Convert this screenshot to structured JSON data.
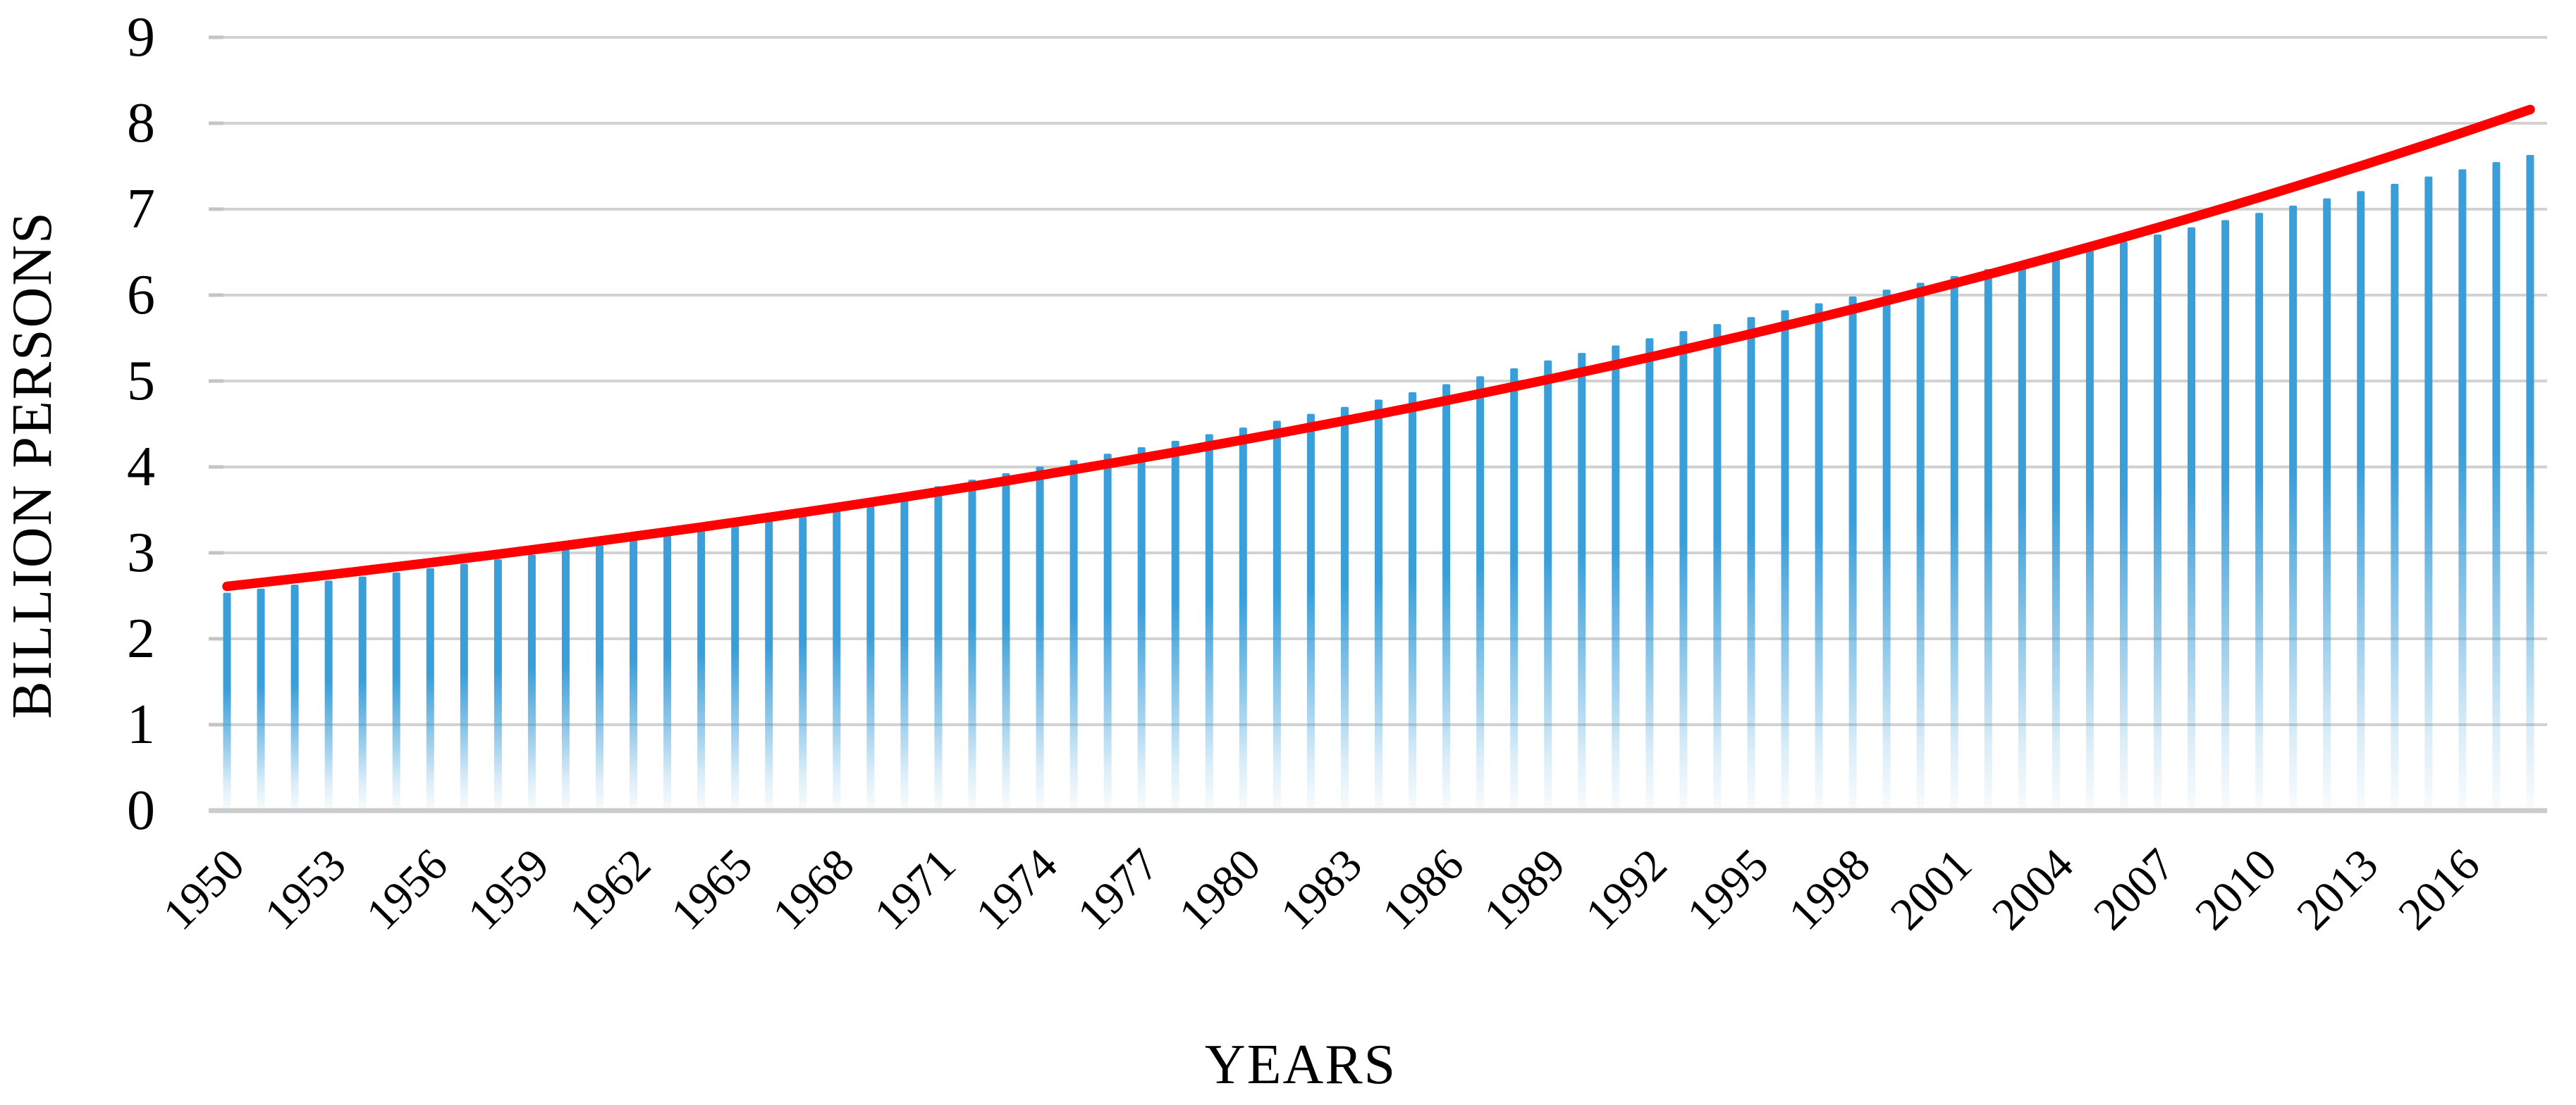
{
  "chart_data": {
    "type": "bar",
    "title": "",
    "xlabel": "YEARS",
    "ylabel": "BILLION PERSONS",
    "categories": [
      1950,
      1951,
      1952,
      1953,
      1954,
      1955,
      1956,
      1957,
      1958,
      1959,
      1960,
      1961,
      1962,
      1963,
      1964,
      1965,
      1966,
      1967,
      1968,
      1969,
      1970,
      1971,
      1972,
      1973,
      1974,
      1975,
      1976,
      1977,
      1978,
      1979,
      1980,
      1981,
      1982,
      1983,
      1984,
      1985,
      1986,
      1987,
      1988,
      1989,
      1990,
      1991,
      1992,
      1993,
      1994,
      1995,
      1996,
      1997,
      1998,
      1999,
      2000,
      2001,
      2002,
      2003,
      2004,
      2005,
      2006,
      2007,
      2008,
      2009,
      2010,
      2011,
      2012,
      2013,
      2014,
      2015,
      2016,
      2017,
      2018
    ],
    "series": [
      {
        "name": "world-population-bars",
        "type": "bar",
        "color": "#3a9ed9",
        "values": [
          2.536,
          2.584,
          2.63,
          2.677,
          2.724,
          2.773,
          2.822,
          2.873,
          2.925,
          2.979,
          3.035,
          3.092,
          3.15,
          3.211,
          3.273,
          3.339,
          3.408,
          3.48,
          3.553,
          3.625,
          3.7,
          3.776,
          3.851,
          3.927,
          4.004,
          4.079,
          4.154,
          4.229,
          4.304,
          4.381,
          4.458,
          4.537,
          4.618,
          4.699,
          4.784,
          4.87,
          4.963,
          5.055,
          5.148,
          5.24,
          5.327,
          5.414,
          5.498,
          5.581,
          5.663,
          5.744,
          5.824,
          5.905,
          5.984,
          6.064,
          6.143,
          6.222,
          6.302,
          6.381,
          6.461,
          6.542,
          6.623,
          6.706,
          6.789,
          6.873,
          6.957,
          7.041,
          7.126,
          7.21,
          7.295,
          7.38,
          7.464,
          7.548,
          7.631
        ]
      },
      {
        "name": "exponential-trend-line",
        "type": "line",
        "model": "exponential",
        "color": "#fe0000",
        "value_start": 2.61,
        "value_end": 8.16
      }
    ],
    "ylim": [
      0,
      9
    ],
    "yticks": [
      "0",
      "1",
      "2",
      "3",
      "4",
      "5",
      "6",
      "7",
      "8",
      "9"
    ],
    "xtick_every": 3,
    "xtick_labels": [
      "1950",
      "1953",
      "1956",
      "1959",
      "1962",
      "1965",
      "1968",
      "1971",
      "1974",
      "1977",
      "1980",
      "1983",
      "1986",
      "1989",
      "1992",
      "1995",
      "1998",
      "2001",
      "2004",
      "2007",
      "2010",
      "2013",
      "2016"
    ],
    "grid": "horizontal",
    "legend": "none",
    "colors": {
      "background": "#ffffff",
      "gridline": "#d2d2d2",
      "tick_stub": "#c4c4c4",
      "baseline": "#cbcbcb",
      "text": "#000000"
    }
  }
}
